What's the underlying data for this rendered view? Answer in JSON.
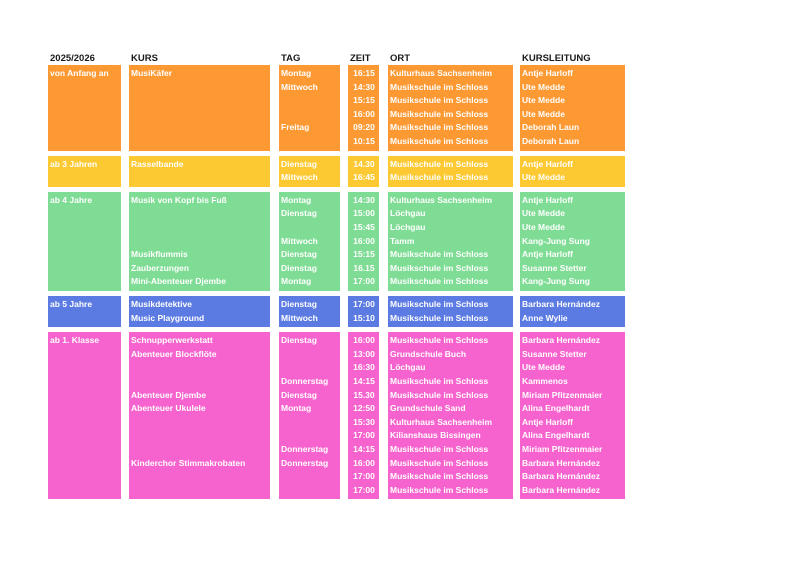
{
  "headers": {
    "year": "2025/2026",
    "kurs": "KURS",
    "tag": "TAG",
    "zeit": "ZEIT",
    "ort": "ORT",
    "leitung": "KURSLEITUNG"
  },
  "groups": [
    {
      "label": "von Anfang an",
      "color": "#fd9933",
      "rows": [
        {
          "kurs": "MusiKäfer",
          "tag": "Montag",
          "zeit": "16:15",
          "ort": "Kulturhaus Sachsenheim",
          "leitung": "Antje Harloff"
        },
        {
          "kurs": "",
          "tag": "Mittwoch",
          "zeit": "14:30",
          "ort": "Musikschule im Schloss",
          "leitung": "Ute Medde"
        },
        {
          "kurs": "",
          "tag": "",
          "zeit": "15:15",
          "ort": "Musikschule im Schloss",
          "leitung": "Ute Medde"
        },
        {
          "kurs": "",
          "tag": "",
          "zeit": "16:00",
          "ort": "Musikschule im Schloss",
          "leitung": "Ute Medde"
        },
        {
          "kurs": "",
          "tag": "Freitag",
          "zeit": "09:20",
          "ort": "Musikschule im Schloss",
          "leitung": "Deborah Laun"
        },
        {
          "kurs": "",
          "tag": "",
          "zeit": "10:15",
          "ort": "Musikschule im Schloss",
          "leitung": "Deborah Laun"
        }
      ]
    },
    {
      "label": "ab 3 Jahren",
      "color": "#fdc933",
      "rows": [
        {
          "kurs": "Rasselbande",
          "tag": "Dienstag",
          "zeit": "14.30",
          "ort": "Musikschule im Schloss",
          "leitung": "Antje Harloff"
        },
        {
          "kurs": "",
          "tag": "Mittwoch",
          "zeit": "16:45",
          "ort": "Musikschule im Schloss",
          "leitung": "Ute Medde"
        }
      ]
    },
    {
      "label": "ab 4 Jahre",
      "color": "#7fdc94",
      "rows": [
        {
          "kurs": "Musik von Kopf bis Fuß",
          "tag": "Montag",
          "zeit": "14:30",
          "ort": "Kulturhaus Sachsenheim",
          "leitung": "Antje Harloff"
        },
        {
          "kurs": "",
          "tag": "Dienstag",
          "zeit": "15:00",
          "ort": "Löchgau",
          "leitung": "Ute Medde"
        },
        {
          "kurs": "",
          "tag": "",
          "zeit": "15:45",
          "ort": "Löchgau",
          "leitung": "Ute Medde"
        },
        {
          "kurs": "",
          "tag": "Mittwoch",
          "zeit": "16:00",
          "ort": "Tamm",
          "leitung": "Kang-Jung Sung"
        },
        {
          "kurs": "Musikflummis",
          "tag": "Dienstag",
          "zeit": "15:15",
          "ort": "Musikschule im Schloss",
          "leitung": "Antje Harloff"
        },
        {
          "kurs": "Zauberzungen",
          "tag": "Dienstag",
          "zeit": "16.15",
          "ort": "Musikschule im Schloss",
          "leitung": "Susanne Stetter"
        },
        {
          "kurs": "Mini-Abenteuer Djembe",
          "tag": "Montag",
          "zeit": "17:00",
          "ort": "Musikschule im Schloss",
          "leitung": "Kang-Jung Sung"
        }
      ]
    },
    {
      "label": "ab 5 Jahre",
      "color": "#5b7be3",
      "rows": [
        {
          "kurs": "Musikdetektive",
          "tag": "Dienstag",
          "zeit": "17:00",
          "ort": "Musikschule im Schloss",
          "leitung": "Barbara Hernández"
        },
        {
          "kurs": "Music Playground",
          "tag": "Mittwoch",
          "zeit": "15:10",
          "ort": "Musikschule im Schloss",
          "leitung": "Anne Wylie"
        }
      ]
    },
    {
      "label": "ab 1. Klasse",
      "color": "#f763ce",
      "rows": [
        {
          "kurs": "Schnupperwerkstatt",
          "tag": "Dienstag",
          "zeit": "16:00",
          "ort": "Musikschule im Schloss",
          "leitung": "Barbara Hernández"
        },
        {
          "kurs": "Abenteuer Blockflöte",
          "tag": "",
          "zeit": "13:00",
          "ort": "Grundschule Buch",
          "leitung": "Susanne Stetter"
        },
        {
          "kurs": "",
          "tag": "",
          "zeit": "16:30",
          "ort": "Löchgau",
          "leitung": "Ute Medde"
        },
        {
          "kurs": "",
          "tag": "Donnerstag",
          "zeit": "14:15",
          "ort": "Musikschule im Schloss",
          "leitung": "Kammenos"
        },
        {
          "kurs": "Abenteuer Djembe",
          "tag": "Dienstag",
          "zeit": "15.30",
          "ort": "Musikschule im Schloss",
          "leitung": "Miriam Pfitzenmaier"
        },
        {
          "kurs": "Abenteuer Ukulele",
          "tag": "Montag",
          "zeit": "12:50",
          "ort": "Grundschule Sand",
          "leitung": "Alina Engelhardt"
        },
        {
          "kurs": "",
          "tag": "",
          "zeit": "15:30",
          "ort": "Kulturhaus Sachsenheim",
          "leitung": "Antje Harloff"
        },
        {
          "kurs": "",
          "tag": "",
          "zeit": "17:00",
          "ort": "Kilianshaus Bissingen",
          "leitung": "Alina Engelhardt"
        },
        {
          "kurs": "",
          "tag": "Donnerstag",
          "zeit": "14:15",
          "ort": "Musikschule im Schloss",
          "leitung": "Miriam Pfitzenmaier"
        },
        {
          "kurs": "Kinderchor Stimmakrobaten",
          "tag": "Donnerstag",
          "zeit": "16:00",
          "ort": "Musikschule im Schloss",
          "leitung": "Barbara Hernández"
        },
        {
          "kurs": "",
          "tag": "",
          "zeit": "17:00",
          "ort": "Musikschule im Schloss",
          "leitung": "Barbara Hernández"
        },
        {
          "kurs": "",
          "tag": "",
          "zeit": "17:00",
          "ort": "Musikschule im Schloss",
          "leitung": "Barbara Hernández"
        }
      ]
    }
  ]
}
